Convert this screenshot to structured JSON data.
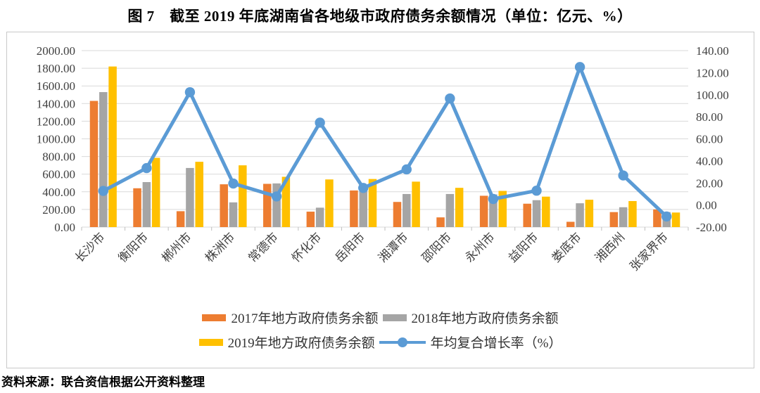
{
  "title": "图 7　截至 2019 年底湖南省各地级市政府债务余额情况（单位：亿元、%）",
  "source": "资料来源：联合资信根据公开资料整理",
  "colors": {
    "grid": "#D9D9D9",
    "tick": "#BFBFBF",
    "axis_text": "#404040",
    "frame_border": "#C9C9C9"
  },
  "chart_data": {
    "type": "bar",
    "subtype": "combo-bar-line",
    "title": "图 7　截至 2019 年底湖南省各地级市政府债务余额情况（单位：亿元、%）",
    "grid": true,
    "legend_position": "bottom",
    "categories": [
      "长沙市",
      "衡阳市",
      "郴州市",
      "株洲市",
      "常德市",
      "怀化市",
      "岳阳市",
      "湘潭市",
      "邵阳市",
      "永州市",
      "益阳市",
      "娄底市",
      "湘西州",
      "张家界市"
    ],
    "series": [
      {
        "name": "2017年地方政府债务余额",
        "type": "bar",
        "axis": "left",
        "color": "#ED7D31",
        "values": [
          1430,
          440,
          180,
          485,
          490,
          175,
          415,
          285,
          110,
          355,
          265,
          60,
          170,
          200
        ]
      },
      {
        "name": "2018年地方政府债务余额",
        "type": "bar",
        "axis": "left",
        "color": "#A5A5A5",
        "values": [
          1530,
          510,
          670,
          280,
          495,
          220,
          440,
          375,
          375,
          370,
          305,
          270,
          225,
          170
        ]
      },
      {
        "name": "2019年地方政府债务余额",
        "type": "bar",
        "axis": "left",
        "color": "#FFC000",
        "values": [
          1820,
          785,
          740,
          700,
          570,
          540,
          545,
          515,
          445,
          410,
          345,
          310,
          295,
          165
        ]
      },
      {
        "name": "年均复合增长率（%）",
        "type": "line",
        "axis": "right",
        "color": "#5B9BD5",
        "values": [
          12.8,
          33.5,
          102.3,
          19.5,
          7.8,
          74.7,
          15.5,
          32.3,
          96.6,
          5.5,
          13.0,
          125.1,
          26.8,
          -10.4
        ]
      }
    ],
    "left_axis": {
      "min": 0,
      "max": 2000,
      "step": 200
    },
    "right_axis": {
      "min": -20,
      "max": 140,
      "step": 20
    }
  }
}
